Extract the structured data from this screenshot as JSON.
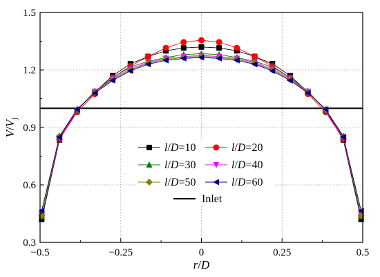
{
  "chart_data": {
    "type": "line",
    "xlabel": {
      "var": "r",
      "sep": "/",
      "var2": "D"
    },
    "ylabel": {
      "var": "V",
      "sep": "/",
      "var2": "V",
      "sub": "j"
    },
    "xlim": [
      -0.5,
      0.5
    ],
    "ylim": [
      0.3,
      1.5
    ],
    "xticks": [
      -0.5,
      -0.25,
      0,
      0.25,
      0.5
    ],
    "xtick_labels": [
      "−0.5",
      "−0.25",
      "0",
      "0.25",
      "0.5"
    ],
    "yticks": [
      0.3,
      0.6,
      0.9,
      1.2,
      1.5
    ],
    "ytick_labels": [
      "0.3",
      "0.6",
      "0.9",
      "1.2",
      "1.5"
    ],
    "grid": "dotted",
    "legend_position": "center-bottom",
    "x": [
      -0.495,
      -0.44,
      -0.385,
      -0.33,
      -0.275,
      -0.22,
      -0.165,
      -0.11,
      -0.055,
      0,
      0.055,
      0.11,
      0.165,
      0.22,
      0.275,
      0.33,
      0.385,
      0.44,
      0.495
    ],
    "series": [
      {
        "name": "l/D=10",
        "label": {
          "v1": "l",
          "mid": "/",
          "v2": "D",
          "eq": "=10"
        },
        "color": "#000000",
        "marker": "square",
        "values": [
          0.42,
          0.835,
          0.99,
          1.085,
          1.17,
          1.232,
          1.27,
          1.3,
          1.315,
          1.32,
          1.315,
          1.3,
          1.27,
          1.232,
          1.17,
          1.085,
          0.99,
          0.835,
          0.42
        ]
      },
      {
        "name": "l/D=20",
        "label": {
          "v1": "l",
          "mid": "/",
          "v2": "D",
          "eq": "=20"
        },
        "color": "#ff0000",
        "marker": "circle",
        "values": [
          0.44,
          0.84,
          0.98,
          1.075,
          1.16,
          1.22,
          1.27,
          1.315,
          1.345,
          1.355,
          1.345,
          1.315,
          1.27,
          1.22,
          1.16,
          1.075,
          0.98,
          0.84,
          0.44
        ]
      },
      {
        "name": "l/D=30",
        "label": {
          "v1": "l",
          "mid": "/",
          "v2": "D",
          "eq": "=30"
        },
        "color": "#008000",
        "marker": "triangle-up",
        "values": [
          0.435,
          0.85,
          0.99,
          1.09,
          1.16,
          1.215,
          1.245,
          1.265,
          1.28,
          1.285,
          1.28,
          1.265,
          1.245,
          1.215,
          1.16,
          1.09,
          0.99,
          0.85,
          0.435
        ]
      },
      {
        "name": "l/D=40",
        "label": {
          "v1": "l",
          "mid": "/",
          "v2": "D",
          "eq": "=40"
        },
        "color": "#ff00ff",
        "marker": "triangle-down",
        "values": [
          0.445,
          0.845,
          0.99,
          1.088,
          1.155,
          1.205,
          1.24,
          1.26,
          1.27,
          1.275,
          1.27,
          1.26,
          1.24,
          1.205,
          1.155,
          1.088,
          0.99,
          0.845,
          0.445
        ]
      },
      {
        "name": "l/D=50",
        "label": {
          "v1": "l",
          "mid": "/",
          "v2": "D",
          "eq": "=50"
        },
        "color": "#808000",
        "marker": "diamond",
        "values": [
          0.44,
          0.855,
          0.995,
          1.085,
          1.15,
          1.2,
          1.235,
          1.255,
          1.265,
          1.27,
          1.265,
          1.255,
          1.235,
          1.2,
          1.15,
          1.085,
          0.995,
          0.855,
          0.44
        ]
      },
      {
        "name": "l/D=60",
        "label": {
          "v1": "l",
          "mid": "/",
          "v2": "D",
          "eq": "=60"
        },
        "color": "#00008b",
        "marker": "triangle-left",
        "values": [
          0.465,
          0.85,
          0.995,
          1.08,
          1.145,
          1.195,
          1.23,
          1.25,
          1.26,
          1.265,
          1.26,
          1.25,
          1.23,
          1.195,
          1.145,
          1.08,
          0.995,
          0.85,
          0.465
        ]
      }
    ],
    "reference_line": {
      "name": "Inlet",
      "y": 1.0,
      "color": "#000000"
    }
  }
}
